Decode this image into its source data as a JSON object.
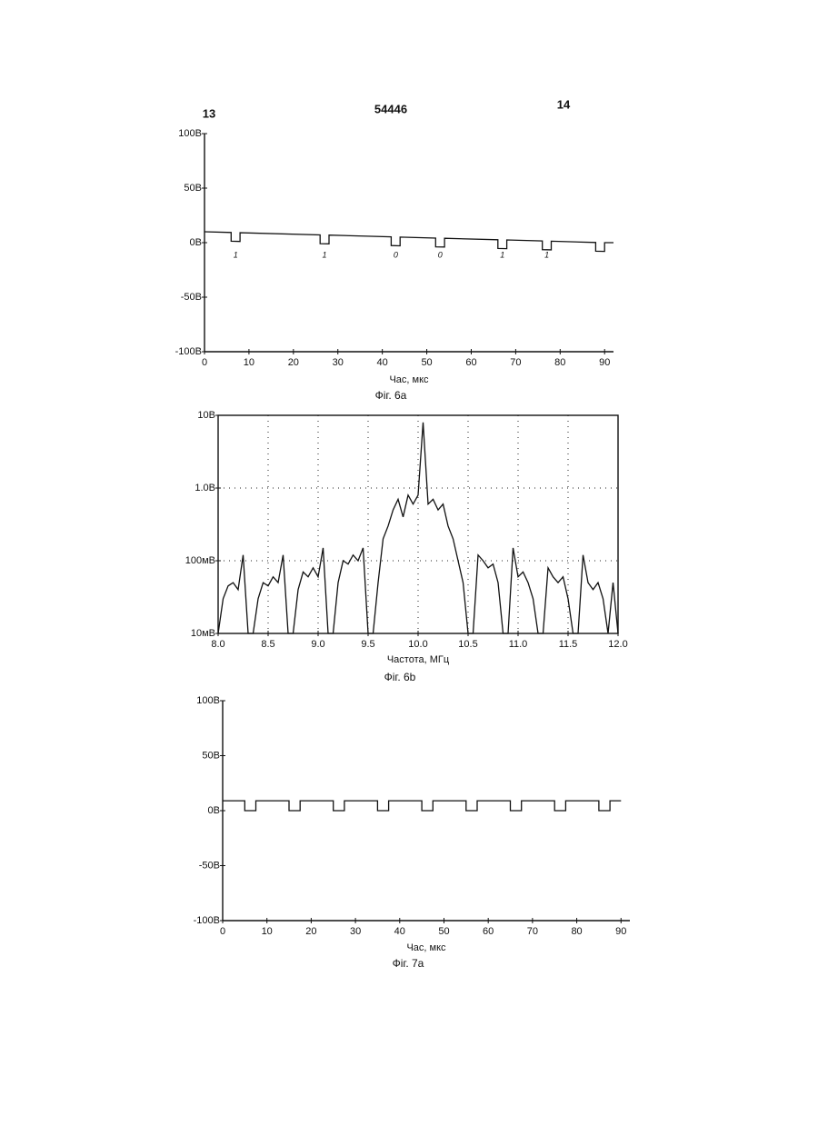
{
  "header": {
    "left_page": "13",
    "doc_number": "54446",
    "right_page": "14"
  },
  "chart_data": [
    {
      "type": "line",
      "caption": "Фіг. 6a",
      "xlabel": "Час, мкс",
      "color": "#111111",
      "x": [
        0,
        6,
        6,
        8,
        8,
        26,
        26,
        28,
        28,
        42,
        42,
        44,
        44,
        52,
        52,
        54,
        54,
        66,
        66,
        68,
        68,
        76,
        76,
        78,
        78,
        88,
        88,
        90,
        90,
        92
      ],
      "values": [
        10,
        9.3,
        1.3,
        1.1,
        9.1,
        7.1,
        -0.9,
        -1.1,
        6.9,
        5.3,
        -2.7,
        -2.9,
        5.1,
        4.2,
        -3.8,
        -4.0,
        4.0,
        2.7,
        -5.3,
        -5.5,
        2.5,
        1.6,
        -6.4,
        -6.6,
        1.3,
        0.2,
        -7.8,
        -8.0,
        0,
        0
      ],
      "xlim": [
        0,
        92
      ],
      "xticks": [
        0,
        10,
        20,
        30,
        40,
        50,
        60,
        70,
        80,
        90
      ],
      "ylim": [
        -100,
        100
      ],
      "yticks": [
        {
          "value": 100,
          "label": "100В"
        },
        {
          "value": 50,
          "label": "50В"
        },
        {
          "value": 0,
          "label": "0В"
        },
        {
          "value": -50,
          "label": "-50В"
        },
        {
          "value": -100,
          "label": "-100В"
        }
      ],
      "annotations": [
        "1",
        "1",
        "0",
        "0",
        "1",
        "1"
      ],
      "grid": false,
      "log_scale": false
    },
    {
      "type": "line",
      "caption": "Фіг. 6b",
      "xlabel": "Частота, МГц",
      "color": "#111111",
      "x": [
        8.0,
        8.05,
        8.1,
        8.15,
        8.2,
        8.25,
        8.3,
        8.35,
        8.4,
        8.45,
        8.5,
        8.55,
        8.6,
        8.65,
        8.7,
        8.75,
        8.8,
        8.85,
        8.9,
        8.95,
        9.0,
        9.05,
        9.1,
        9.15,
        9.2,
        9.25,
        9.3,
        9.35,
        9.4,
        9.45,
        9.5,
        9.55,
        9.6,
        9.65,
        9.7,
        9.75,
        9.8,
        9.85,
        9.9,
        9.95,
        10.0,
        10.05,
        10.1,
        10.15,
        10.2,
        10.25,
        10.3,
        10.35,
        10.4,
        10.45,
        10.5,
        10.55,
        10.6,
        10.65,
        10.7,
        10.75,
        10.8,
        10.85,
        10.9,
        10.95,
        11.0,
        11.05,
        11.1,
        11.15,
        11.2,
        11.25,
        11.3,
        11.35,
        11.4,
        11.45,
        11.5,
        11.55,
        11.6,
        11.65,
        11.7,
        11.75,
        11.8,
        11.85,
        11.9,
        11.95,
        12.0
      ],
      "values": [
        0.01,
        0.03,
        0.045,
        0.05,
        0.04,
        0.12,
        0.01,
        0.01,
        0.03,
        0.05,
        0.045,
        0.06,
        0.05,
        0.12,
        0.01,
        0.01,
        0.04,
        0.07,
        0.06,
        0.08,
        0.06,
        0.15,
        0.01,
        0.01,
        0.05,
        0.1,
        0.09,
        0.12,
        0.1,
        0.15,
        0.01,
        0.01,
        0.05,
        0.2,
        0.3,
        0.5,
        0.7,
        0.4,
        0.8,
        0.6,
        0.8,
        8,
        0.6,
        0.7,
        0.5,
        0.6,
        0.3,
        0.2,
        0.1,
        0.05,
        0.01,
        0.01,
        0.12,
        0.1,
        0.08,
        0.09,
        0.05,
        0.01,
        0.01,
        0.15,
        0.06,
        0.07,
        0.05,
        0.03,
        0.01,
        0.01,
        0.08,
        0.06,
        0.05,
        0.06,
        0.03,
        0.01,
        0.01,
        0.12,
        0.05,
        0.04,
        0.05,
        0.03,
        0.01,
        0.05,
        0.01
      ],
      "xlim": [
        8,
        12
      ],
      "xticks": [
        {
          "value": 8,
          "label": "8.0"
        },
        8.5,
        {
          "value": 9,
          "label": "9.0"
        },
        9.5,
        {
          "value": 10,
          "label": "10.0"
        },
        10.5,
        {
          "value": 11,
          "label": "11.0"
        },
        11.5,
        {
          "value": 12,
          "label": "12.0"
        }
      ],
      "ylim": [
        0.01,
        10
      ],
      "yticks": [
        {
          "value": 10,
          "label": "10В"
        },
        {
          "value": 1,
          "label": "1.0В"
        },
        {
          "value": 0.1,
          "label": "100мВ"
        },
        {
          "value": 0.01,
          "label": "10мВ"
        }
      ],
      "grid": true,
      "log_scale": true
    },
    {
      "type": "line",
      "caption": "Фіг. 7a",
      "xlabel": "Час, мкс",
      "color": "#111111",
      "x": [
        0,
        5,
        5,
        7.5,
        7.5,
        15,
        15,
        17.5,
        17.5,
        25,
        25,
        27.5,
        27.5,
        35,
        35,
        37.5,
        37.5,
        45,
        45,
        47.5,
        47.5,
        55,
        55,
        57.5,
        57.5,
        65,
        65,
        67.5,
        67.5,
        75,
        75,
        77.5,
        77.5,
        85,
        85,
        87.5,
        87.5,
        90
      ],
      "values": [
        9,
        9,
        0,
        0,
        9,
        9,
        0,
        0,
        9,
        9,
        0,
        0,
        9,
        9,
        0,
        0,
        9,
        9,
        0,
        0,
        9,
        9,
        0,
        0,
        9,
        9,
        0,
        0,
        9,
        9,
        0,
        0,
        9,
        9,
        0,
        0,
        9,
        9
      ],
      "xlim": [
        0,
        92
      ],
      "xticks": [
        0,
        10,
        20,
        30,
        40,
        50,
        60,
        70,
        80,
        90
      ],
      "ylim": [
        -100,
        100
      ],
      "yticks": [
        {
          "value": 100,
          "label": "100В"
        },
        {
          "value": 50,
          "label": "50В"
        },
        {
          "value": 0,
          "label": "0В"
        },
        {
          "value": -50,
          "label": "-50В"
        },
        {
          "value": -100,
          "label": "-100В"
        }
      ],
      "grid": false,
      "log_scale": false
    }
  ]
}
